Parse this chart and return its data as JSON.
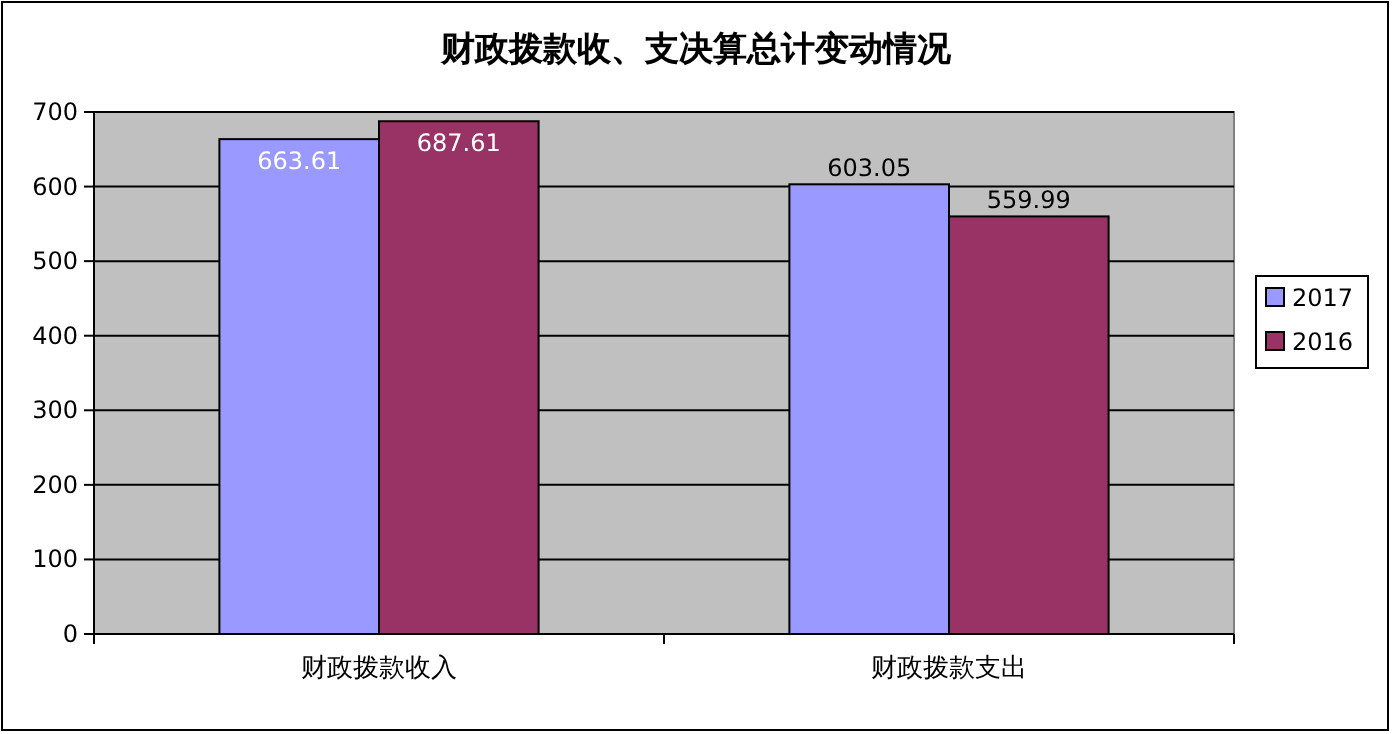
{
  "chart_data": {
    "type": "bar",
    "title": "财政拨款收、支决算总计变动情况",
    "categories": [
      "财政拨款收入",
      "财政拨款支出"
    ],
    "series": [
      {
        "name": "2017",
        "color": "#9999ff",
        "values": [
          663.61,
          603.05
        ]
      },
      {
        "name": "2016",
        "color": "#993366",
        "values": [
          687.61,
          559.99
        ]
      }
    ],
    "ylim": [
      0,
      700
    ],
    "yticks": [
      0,
      100,
      200,
      300,
      400,
      500,
      600,
      700
    ],
    "grid": "y",
    "legend": "right",
    "data_labels": true
  }
}
